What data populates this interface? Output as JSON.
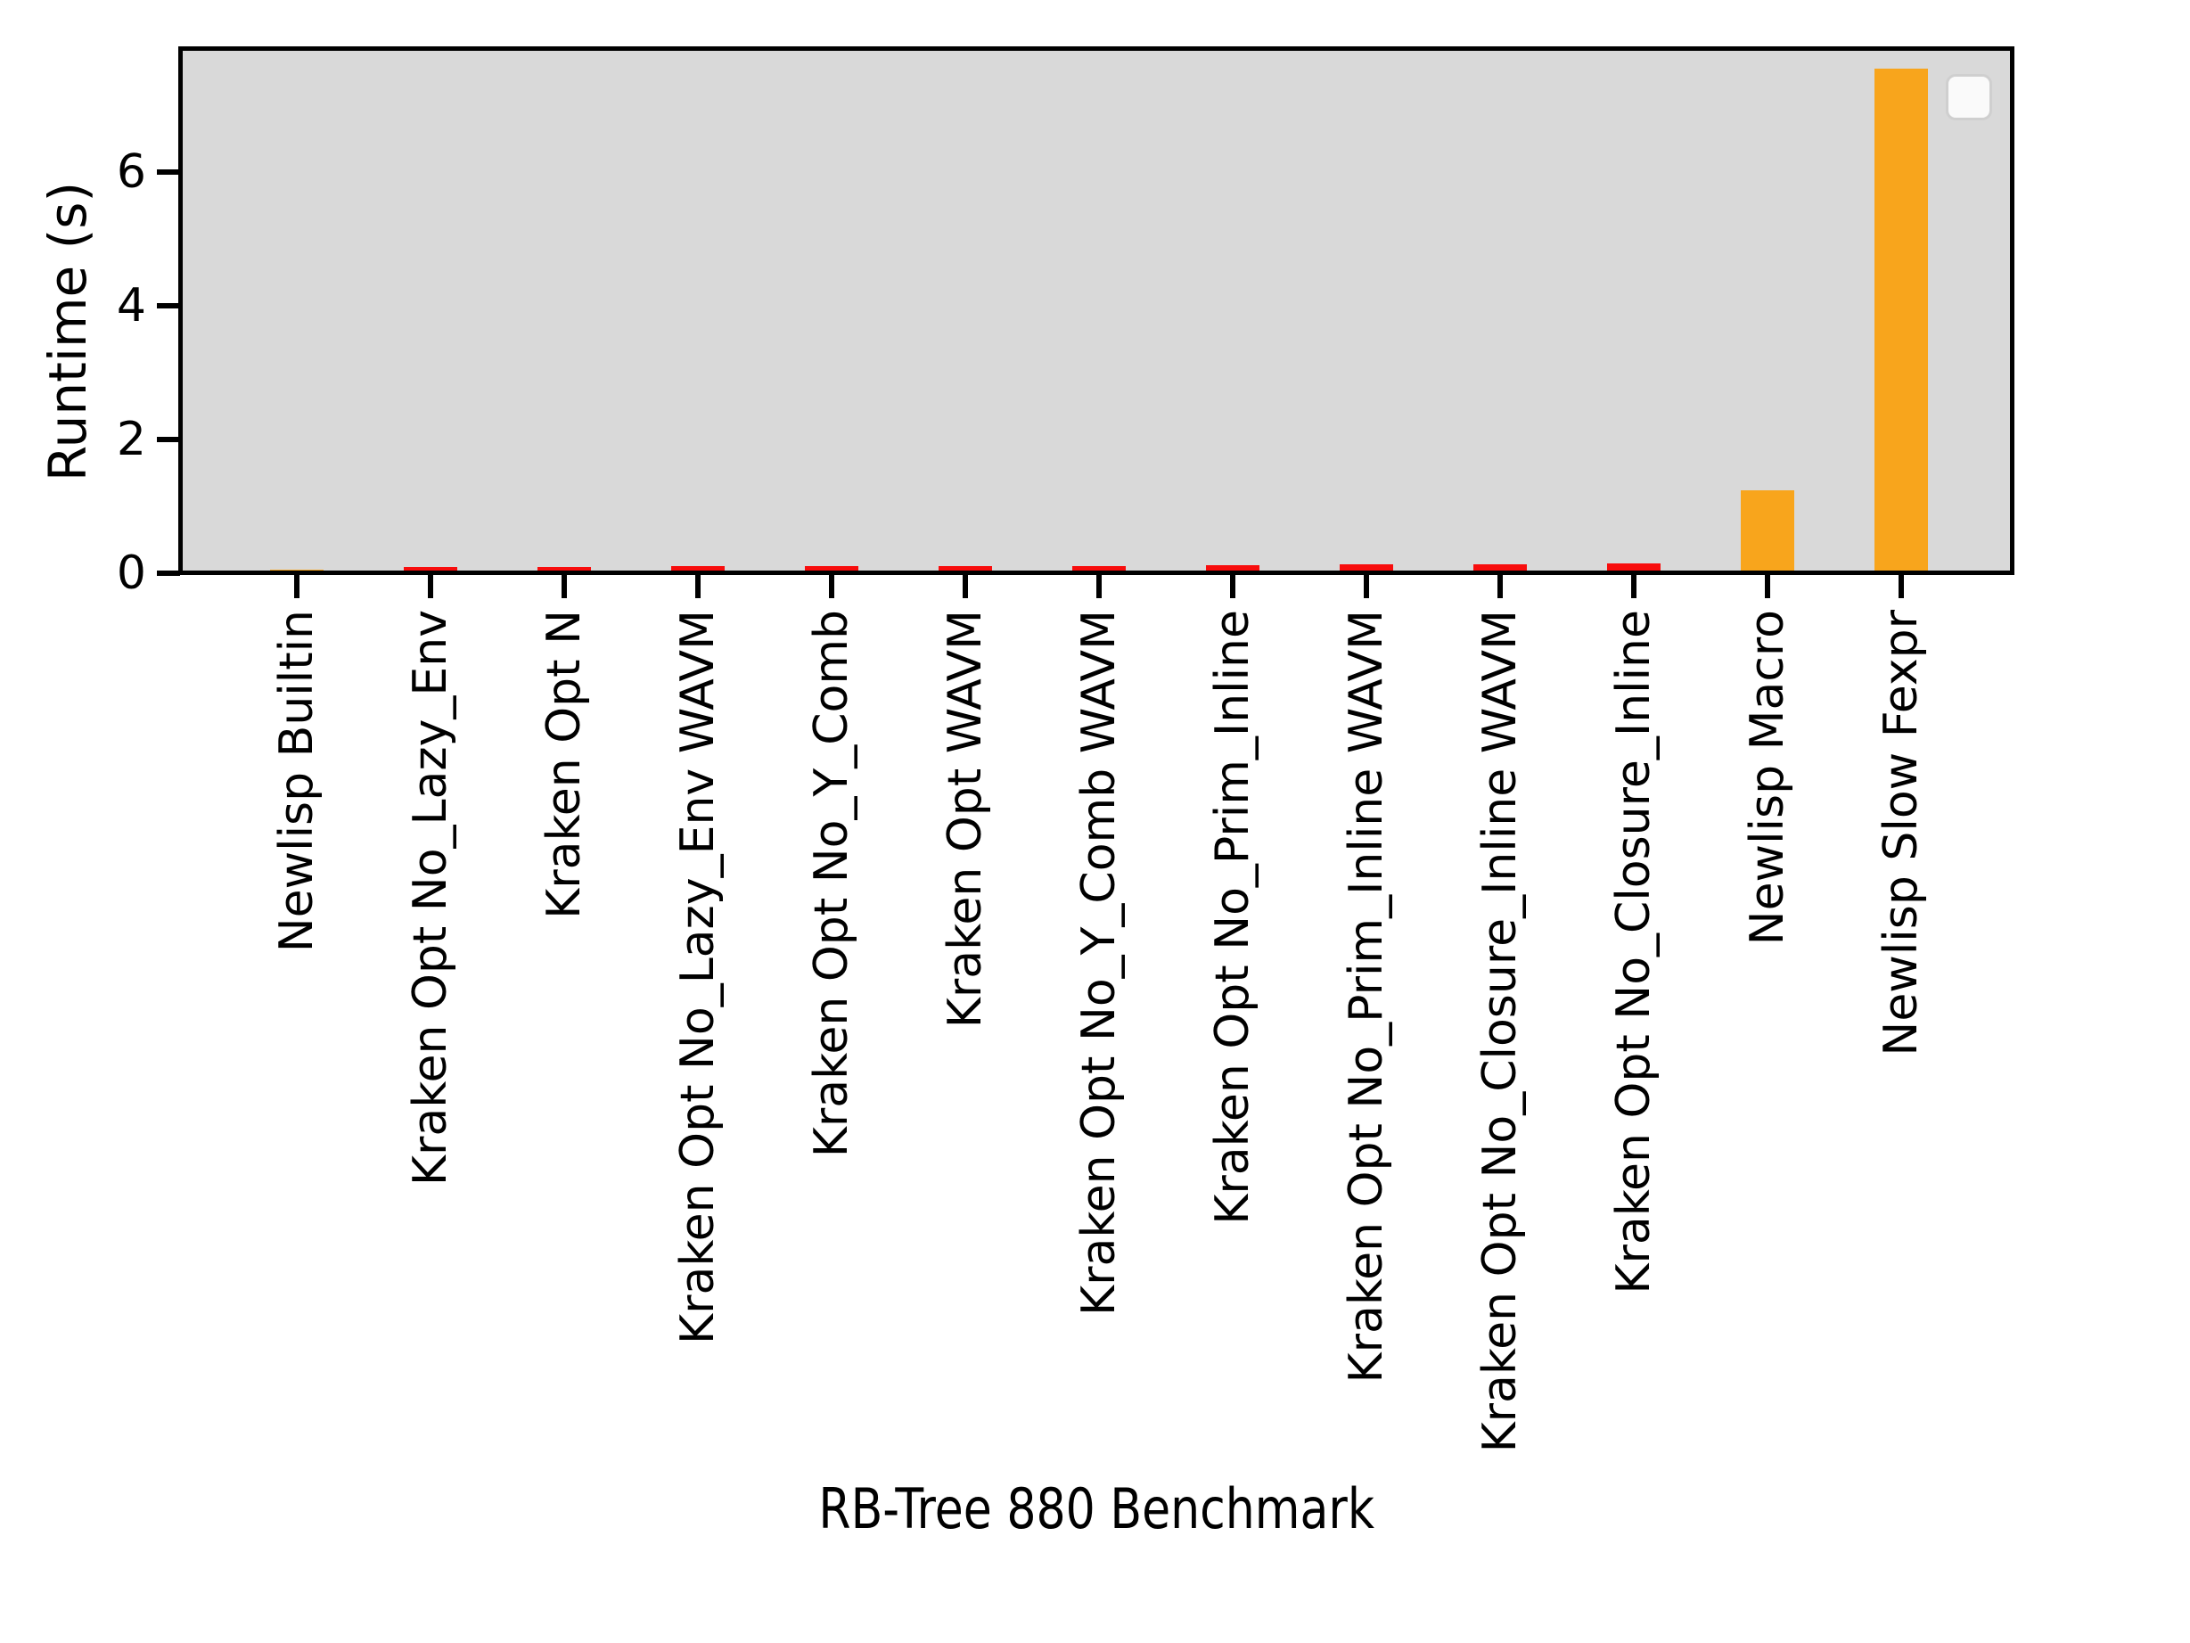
{
  "figure": {
    "background": "#ffffff",
    "plot_background": "#d9d9d9",
    "spine_color": "#000000",
    "tick_color": "#000000",
    "legend": {
      "visible": true,
      "entries": [],
      "position": "upper right",
      "background": "#ffffff",
      "border_color": "#cfcfcf"
    }
  },
  "chart_data": {
    "type": "bar",
    "title": "",
    "xlabel": "RB-Tree 880 Benchmark",
    "ylabel": "Runtime (s)",
    "ylim": [
      0,
      7.9
    ],
    "yticks": [
      0,
      2,
      4,
      6
    ],
    "grid": false,
    "legend_position": "upper right",
    "colors": {
      "red": "#f80d0d",
      "orange": "#f8a51c"
    },
    "categories": [
      "Newlisp Builtin",
      "Kraken Opt No_Lazy_Env",
      "Kraken Opt N",
      "Kraken Opt No_Lazy_Env WAVM",
      "Kraken Opt No_Y_Comb",
      "Kraken Opt WAVM",
      "Kraken Opt No_Y_Comb WAVM",
      "Kraken Opt No_Prim_Inline",
      "Kraken Opt No_Prim_Inline WAVM",
      "Kraken Opt No_Closure_Inline WAVM",
      "Kraken Opt No_Closure_Inline",
      "Newlisp Macro",
      "Newlisp Slow Fexpr"
    ],
    "values": [
      0.01,
      0.05,
      0.05,
      0.06,
      0.06,
      0.07,
      0.07,
      0.08,
      0.09,
      0.09,
      0.1,
      1.2,
      7.5
    ],
    "bar_colors": [
      "orange",
      "red",
      "red",
      "red",
      "red",
      "red",
      "red",
      "red",
      "red",
      "red",
      "red",
      "orange",
      "orange"
    ]
  }
}
